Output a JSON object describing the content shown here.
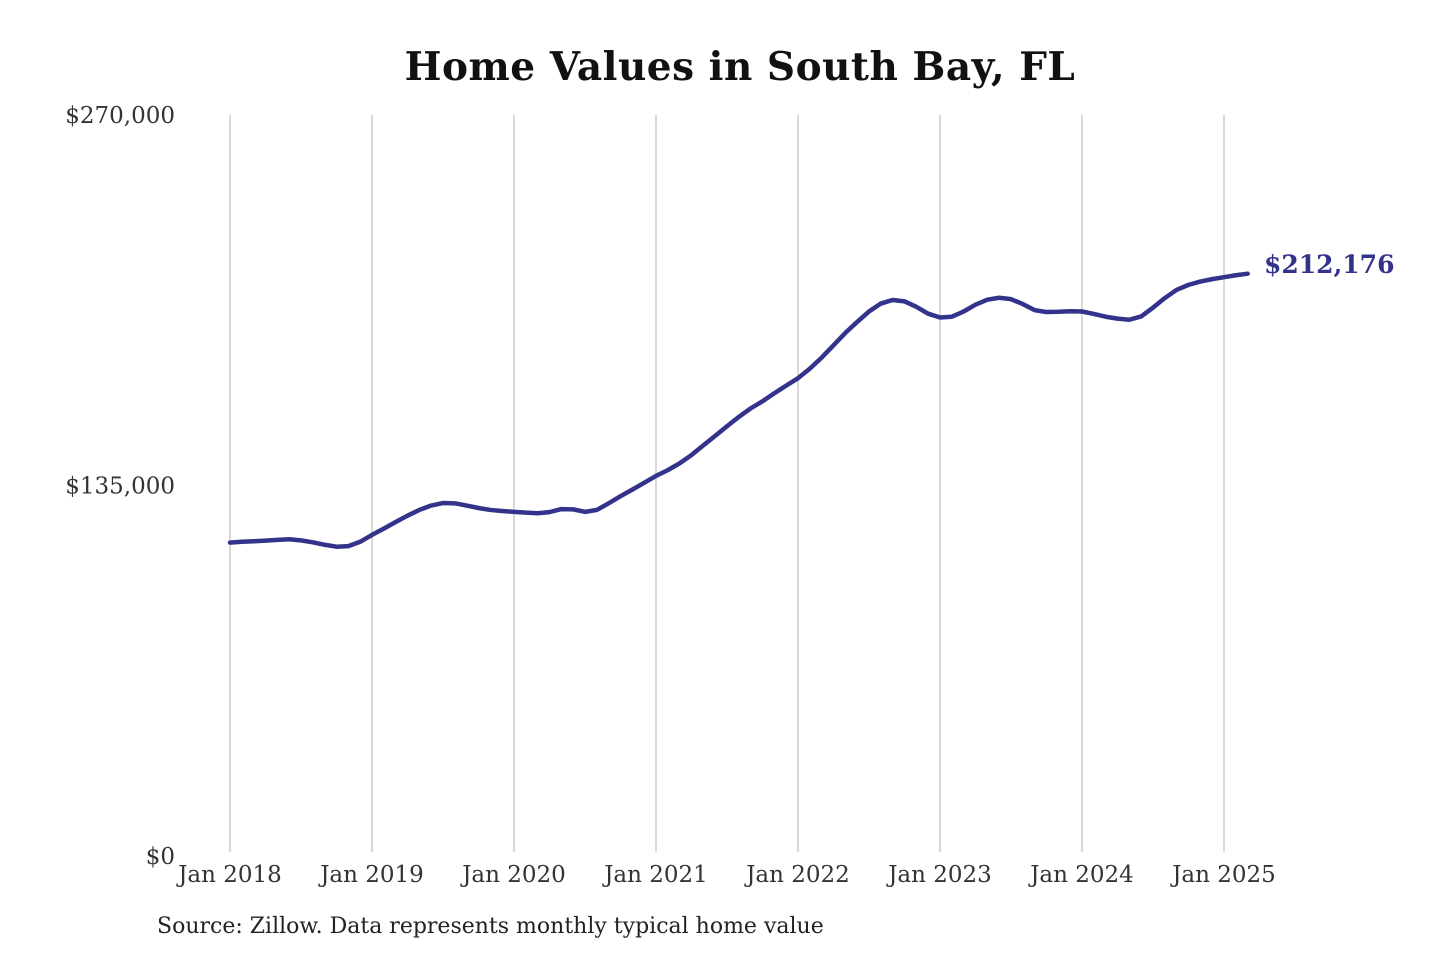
{
  "title": "Home Values in South Bay, FL",
  "end_label": "$212,176",
  "source": "Source: Zillow. Data represents monthly typical home value",
  "colors": {
    "line": "#33338c",
    "end_label": "#33338c",
    "grid": "#b3b3b3",
    "axis_text": "#333333",
    "title_text": "#111111",
    "source_text": "#222222",
    "background": "#ffffff"
  },
  "chart_data": {
    "type": "line",
    "title": "Home Values in South Bay, FL",
    "xlabel": "",
    "ylabel": "",
    "x_tick_labels": [
      "Jan 2018",
      "Jan 2019",
      "Jan 2020",
      "Jan 2021",
      "Jan 2022",
      "Jan 2023",
      "Jan 2024",
      "Jan 2025"
    ],
    "y_ticks": [
      0,
      135000,
      270000
    ],
    "y_tick_labels": [
      "$0",
      "$135,000",
      "$270,000"
    ],
    "ylim": [
      0,
      270000
    ],
    "grid": "vertical-only",
    "legend": "none",
    "x_start_month": "Jan 2018",
    "x_end_month": "Mar 2025",
    "months_per_point": 1,
    "end_value": 212176,
    "series": [
      {
        "name": "Monthly typical home value",
        "values": [
          114200,
          114500,
          114700,
          114900,
          115200,
          115400,
          115000,
          114300,
          113400,
          112700,
          112900,
          114500,
          117000,
          119300,
          121700,
          124000,
          126100,
          127700,
          128600,
          128500,
          127700,
          126800,
          126100,
          125700,
          125400,
          125100,
          124900,
          125300,
          126400,
          126300,
          125400,
          126100,
          128500,
          131100,
          133500,
          136000,
          138500,
          140600,
          143100,
          146100,
          149600,
          153100,
          156600,
          160000,
          163100,
          165700,
          168600,
          171400,
          174100,
          177600,
          181600,
          186100,
          190600,
          194600,
          198400,
          201300,
          202600,
          202100,
          200100,
          197600,
          196200,
          196500,
          198400,
          200900,
          202700,
          203400,
          202900,
          201100,
          198900,
          198200,
          198300,
          198500,
          198400,
          197500,
          196500,
          195800,
          195400,
          196600,
          199800,
          203300,
          206300,
          208100,
          209300,
          210200,
          210900,
          211600,
          212176
        ]
      }
    ]
  }
}
